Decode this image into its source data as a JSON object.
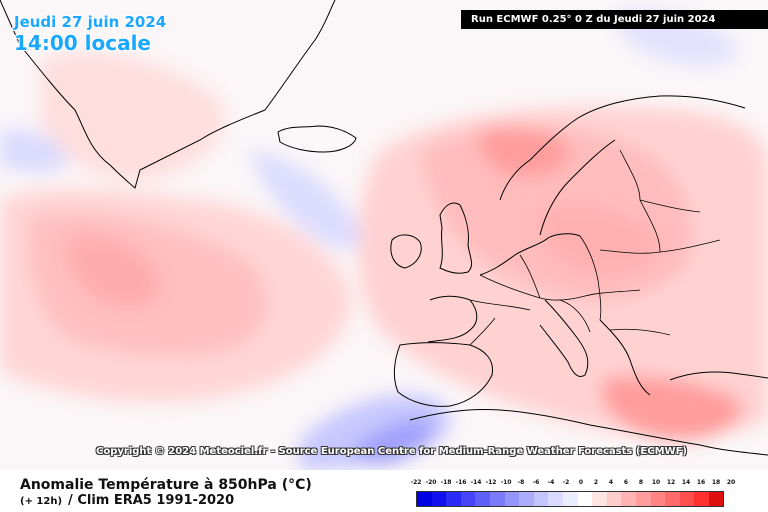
{
  "header": {
    "date": "Jeudi 27 juin 2024",
    "time": "14:00 locale",
    "run": "Run ECMWF 0.25° 0 Z du Jeudi 27 juin 2024"
  },
  "copyright": "Copyright © 2024 Meteociel.fr - Source European Centre for Medium-Range Weather Forecasts (ECMWF)",
  "footer": {
    "title": "Anomalie Température à 850hPa (°C)",
    "subtitle_lead": "(+ 12h)",
    "subtitle": "/ Clim ERA5 1991-2020"
  },
  "scale": {
    "labels": [
      "-22",
      "-20",
      "-18",
      "-16",
      "-14",
      "-12",
      "-10",
      "-8",
      "-6",
      "-4",
      "-2",
      "0",
      "2",
      "4",
      "6",
      "8",
      "10",
      "12",
      "14",
      "16",
      "18",
      "20"
    ],
    "colors": [
      "#0000e0",
      "#1010ee",
      "#2a2af5",
      "#4646f8",
      "#5f5ffa",
      "#7a7afb",
      "#9494fc",
      "#acacfd",
      "#c4c4fe",
      "#dadafe",
      "#ececff",
      "#ffffff",
      "#ffe4e4",
      "#ffcccc",
      "#ffb4b4",
      "#ff9c9c",
      "#ff8484",
      "#ff6a6a",
      "#ff4e4e",
      "#ff3030",
      "#e01010"
    ]
  }
}
